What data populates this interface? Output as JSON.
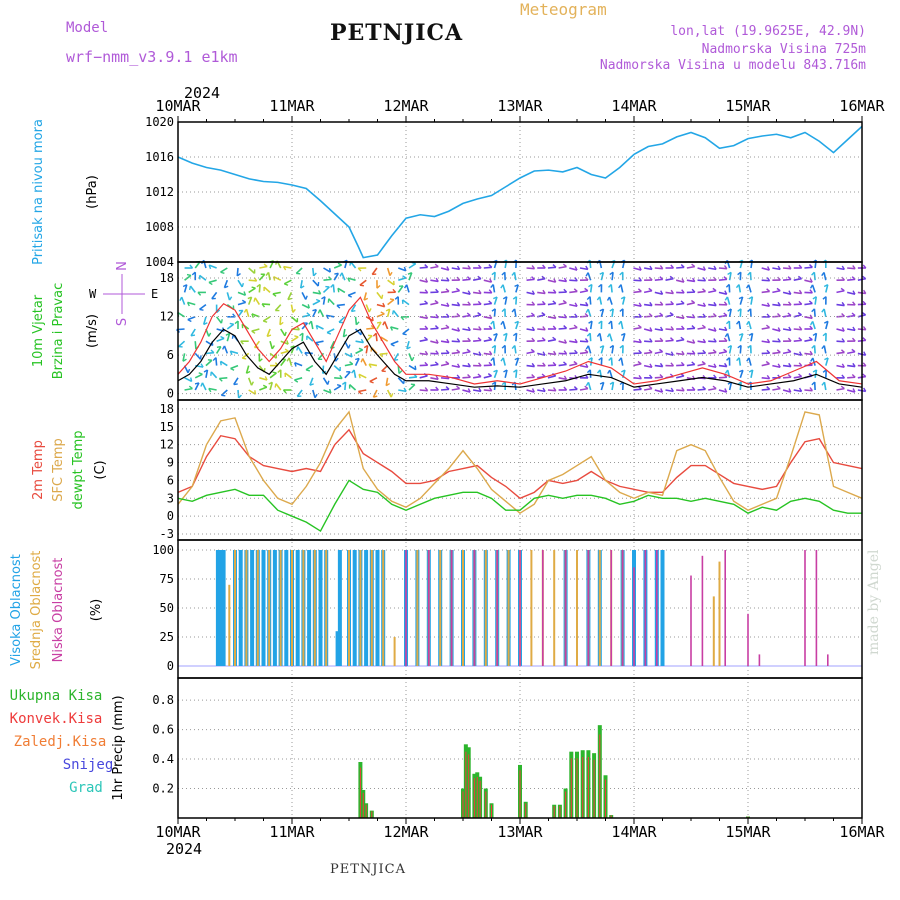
{
  "header": {
    "title": "PETNJICA",
    "subtitle": "Meteogram",
    "model_label": "Model",
    "model_name": "wrf−nmm_v3.9.1  e1km",
    "loc_coords": "lon,lat (19.9625E, 42.9N)",
    "elevation": "Nadmorska Visina 725m",
    "model_elevation": "Nadmorska Visina u modelu 843.716m"
  },
  "footer": {
    "station": "PETNJICA",
    "credit": "made by Angel"
  },
  "time_axis": {
    "year": "2024",
    "labels": [
      "10MAR",
      "11MAR",
      "12MAR",
      "13MAR",
      "14MAR",
      "15MAR",
      "16MAR"
    ]
  },
  "colors": {
    "pressure": "#23a6e6",
    "wind_speed": "#000000",
    "gust": "#ee3333",
    "temp2m": "#e84b3f",
    "sfc_temp": "#dca94d",
    "dewpt": "#27c323",
    "cloud_high": "#22a3e6",
    "cloud_mid": "#dfab45",
    "cloud_low": "#c83ea3",
    "precip_total": "#2db52d",
    "precip_conv": "#ee3c3c",
    "precip_frz": "#f07d35",
    "snow": "#4848dd",
    "grad": "#2cc6b8"
  },
  "chart_data": [
    {
      "type": "line",
      "panel": "pressure",
      "ylabel": "Pritisak na nivou mora",
      "unit": "(hPa)",
      "ylim": [
        1004,
        1020
      ],
      "yticks": [
        1004,
        1008,
        1012,
        1016,
        1020
      ],
      "x_days": [
        0,
        0.125,
        0.25,
        0.375,
        0.5,
        0.625,
        0.75,
        0.875,
        1.0,
        1.125,
        1.25,
        1.375,
        1.5,
        1.58,
        1.625,
        1.75,
        1.875,
        2.0,
        2.125,
        2.25,
        2.375,
        2.5,
        2.625,
        2.75,
        2.875,
        3.0,
        3.125,
        3.25,
        3.375,
        3.5,
        3.625,
        3.75,
        3.875,
        4.0,
        4.125,
        4.25,
        4.375,
        4.5,
        4.625,
        4.75,
        4.875,
        5.0,
        5.125,
        5.25,
        5.375,
        5.5,
        5.625,
        5.75,
        5.875,
        6.0
      ],
      "values": [
        1016,
        1015.3,
        1014.8,
        1014.5,
        1014,
        1013.5,
        1013.2,
        1013.1,
        1012.8,
        1012.4,
        1011,
        1009.5,
        1008,
        1005.8,
        1004.5,
        1004.8,
        1007,
        1009,
        1009.4,
        1009.2,
        1009.8,
        1010.7,
        1011.2,
        1011.6,
        1012.6,
        1013.6,
        1014.4,
        1014.5,
        1014.3,
        1014.8,
        1014,
        1013.6,
        1014.8,
        1016.3,
        1017.2,
        1017.5,
        1018.3,
        1018.8,
        1018.2,
        1017.0,
        1017.3,
        1018.1,
        1018.4,
        1018.6,
        1018.2,
        1018.8,
        1017.8,
        1016.5,
        1018.0,
        1019.5
      ]
    },
    {
      "type": "line",
      "panel": "wind",
      "ylabel": "10m Vjetar",
      "ylabel2": "Brzina i Pravac",
      "unit": "(m/s)",
      "ylim": [
        -1,
        20.5
      ],
      "yticks": [
        0,
        6,
        12,
        18
      ],
      "compass": {
        "n": "N",
        "e": "E",
        "w": "W",
        "s": "S"
      },
      "x_days": [
        0,
        0.1,
        0.2,
        0.3,
        0.4,
        0.5,
        0.6,
        0.7,
        0.8,
        0.9,
        1.0,
        1.1,
        1.2,
        1.3,
        1.4,
        1.5,
        1.6,
        1.7,
        1.8,
        1.9,
        2.0,
        2.2,
        2.4,
        2.6,
        2.8,
        3.0,
        3.2,
        3.4,
        3.6,
        3.8,
        4.0,
        4.2,
        4.4,
        4.6,
        4.8,
        5.0,
        5.2,
        5.4,
        5.6,
        5.8,
        6.0
      ],
      "series": [
        {
          "values": [
            2,
            3,
            5,
            8,
            10,
            9,
            6,
            4,
            3,
            5,
            7,
            8,
            5,
            3,
            6,
            9,
            10,
            7,
            5,
            3,
            2,
            2,
            1.5,
            1,
            1.2,
            1,
            1.5,
            2,
            3,
            2.5,
            1,
            1.5,
            2,
            2.5,
            2,
            1,
            1.5,
            2,
            3,
            1.5,
            1
          ]
        },
        {
          "values": [
            3,
            5,
            8,
            12,
            14,
            13,
            10,
            7,
            5,
            7,
            10,
            11,
            8,
            5,
            9,
            13,
            15,
            11,
            8,
            5,
            3,
            3,
            2.5,
            1.5,
            2,
            1.5,
            2.5,
            3.5,
            5,
            4,
            1.5,
            2,
            3,
            4,
            3,
            1.5,
            2,
            3.5,
            5,
            2,
            1.5
          ]
        }
      ]
    },
    {
      "type": "line",
      "panel": "temperature",
      "ylabels": [
        "2m Temp",
        "SFC Temp",
        "dewpt Temp"
      ],
      "unit": "(C)",
      "ylim": [
        -4,
        19.5
      ],
      "yticks": [
        -3,
        0,
        3,
        6,
        9,
        12,
        15,
        18
      ],
      "x_days": [
        0,
        0.125,
        0.25,
        0.375,
        0.5,
        0.625,
        0.75,
        0.875,
        1.0,
        1.125,
        1.25,
        1.375,
        1.5,
        1.625,
        1.75,
        1.875,
        2.0,
        2.125,
        2.25,
        2.375,
        2.5,
        2.625,
        2.75,
        2.875,
        3.0,
        3.125,
        3.25,
        3.375,
        3.5,
        3.625,
        3.75,
        3.875,
        4.0,
        4.125,
        4.25,
        4.375,
        4.5,
        4.625,
        4.75,
        4.875,
        5.0,
        5.125,
        5.25,
        5.375,
        5.5,
        5.625,
        5.75,
        5.875,
        6.0
      ],
      "series": [
        {
          "name": "2m Temp",
          "values": [
            4,
            5,
            10,
            13.5,
            13,
            10,
            8.5,
            8,
            7.5,
            8,
            7.5,
            12,
            14.5,
            10.5,
            9,
            7.5,
            5.5,
            5.5,
            6,
            7.5,
            8,
            8.5,
            6.5,
            5,
            3,
            4,
            6,
            5.5,
            6,
            7.5,
            6,
            5,
            4.5,
            4,
            4,
            6.5,
            8.5,
            8.5,
            7,
            5.5,
            5,
            4.5,
            5,
            9,
            12.5,
            13,
            9,
            8.5,
            8
          ]
        },
        {
          "name": "SFC Temp",
          "values": [
            2,
            5,
            12,
            16,
            16.5,
            10,
            6,
            3,
            2,
            5,
            9,
            14.5,
            17.5,
            8,
            4.5,
            2.5,
            1.5,
            3,
            5.5,
            8,
            11,
            8,
            4.5,
            2.5,
            0.5,
            2,
            6,
            7,
            8.5,
            10,
            6,
            4,
            3,
            4,
            3.5,
            11,
            12,
            11,
            6.5,
            2.5,
            1,
            2,
            3,
            10,
            17.5,
            17,
            5,
            4,
            3
          ]
        },
        {
          "name": "dewpt Temp",
          "values": [
            3,
            2.5,
            3.5,
            4,
            4.5,
            3.5,
            3.5,
            1,
            0,
            -1,
            -2.5,
            2,
            6,
            4.5,
            4,
            2,
            1,
            2,
            3,
            3.5,
            4,
            4,
            3,
            1,
            1,
            3,
            3.5,
            3,
            3.5,
            3.5,
            3,
            2,
            2.5,
            3.5,
            3,
            3,
            2.5,
            3,
            2.5,
            2,
            0.5,
            1.5,
            1,
            2.5,
            3,
            2.5,
            1,
            0.5,
            0.5
          ]
        }
      ]
    },
    {
      "type": "bar",
      "panel": "clouds",
      "ylabels": [
        "Visoka Oblacnost",
        "Srednja Oblacnost",
        "Niska Oblacnost"
      ],
      "unit": "(%)",
      "ylim": [
        0,
        100
      ],
      "yticks": [
        0,
        25,
        50,
        75,
        100
      ],
      "series": [
        {
          "name": "Visoka Oblacnost",
          "x_days": [
            0.35,
            0.38,
            0.4,
            0.5,
            0.55,
            0.6,
            0.65,
            0.7,
            0.75,
            0.8,
            0.85,
            0.9,
            0.95,
            1.0,
            1.05,
            1.1,
            1.15,
            1.2,
            1.25,
            1.3,
            1.4,
            1.42,
            1.5,
            1.55,
            1.6,
            1.65,
            1.7,
            1.75,
            1.8,
            2.0,
            2.1,
            2.2,
            2.3,
            2.4,
            2.5,
            2.6,
            2.7,
            2.8,
            2.9,
            3.0,
            3.4,
            3.6,
            3.7,
            3.9,
            4.0,
            4.1,
            4.2,
            4.25
          ],
          "values": [
            100,
            100,
            100,
            100,
            100,
            100,
            100,
            100,
            100,
            100,
            100,
            100,
            100,
            100,
            100,
            100,
            100,
            100,
            100,
            100,
            30,
            100,
            100,
            100,
            100,
            100,
            100,
            100,
            100,
            100,
            100,
            100,
            100,
            100,
            100,
            100,
            100,
            100,
            100,
            100,
            100,
            100,
            100,
            100,
            100,
            100,
            100,
            100
          ]
        },
        {
          "name": "Srednja Oblacnost",
          "x_days": [
            0.45,
            0.5,
            0.6,
            0.7,
            0.8,
            0.9,
            1.0,
            1.1,
            1.2,
            1.3,
            1.5,
            1.6,
            1.7,
            1.8,
            1.9,
            2.1,
            2.2,
            2.3,
            2.4,
            2.5,
            2.6,
            2.7,
            2.8,
            2.9,
            3.0,
            3.1,
            3.2,
            3.3,
            3.4,
            3.5,
            3.6,
            3.7,
            3.8,
            3.9,
            4.7,
            4.75
          ],
          "values": [
            70,
            100,
            100,
            100,
            100,
            100,
            100,
            100,
            100,
            100,
            100,
            100,
            100,
            100,
            25,
            100,
            100,
            100,
            100,
            100,
            100,
            100,
            100,
            100,
            100,
            100,
            100,
            100,
            100,
            100,
            100,
            100,
            100,
            100,
            60,
            90
          ]
        },
        {
          "name": "Niska Oblacnost",
          "x_days": [
            2.0,
            2.2,
            2.4,
            2.6,
            2.8,
            3.0,
            3.2,
            3.4,
            3.6,
            3.8,
            3.9,
            4.0,
            4.1,
            4.2,
            4.5,
            4.6,
            4.8,
            5.0,
            5.1,
            5.5,
            5.6,
            5.7
          ],
          "values": [
            100,
            100,
            100,
            100,
            100,
            100,
            100,
            100,
            100,
            100,
            100,
            85,
            100,
            100,
            78,
            95,
            100,
            45,
            10,
            100,
            100,
            10
          ]
        }
      ]
    },
    {
      "type": "bar",
      "panel": "precipitation",
      "unit": "1hr Precip (mm)",
      "ylim": [
        0,
        0.95
      ],
      "yticks": [
        0.2,
        0.4,
        0.6,
        0.8
      ],
      "legend": [
        "Ukupna Kisa",
        "Konvek.Kisa",
        "Zaledj.Kisa",
        "Snijeg",
        "Grad"
      ],
      "x_days": [
        1.6,
        1.625,
        1.65,
        1.7,
        2.5,
        2.525,
        2.55,
        2.6,
        2.625,
        2.65,
        2.7,
        2.75,
        3.0,
        3.05,
        3.3,
        3.35,
        3.4,
        3.45,
        3.5,
        3.55,
        3.6,
        3.65,
        3.7,
        3.75,
        3.8,
        5.0
      ],
      "values": [
        0.38,
        0.19,
        0.1,
        0.05,
        0.2,
        0.5,
        0.48,
        0.3,
        0.31,
        0.28,
        0.2,
        0.1,
        0.36,
        0.11,
        0.09,
        0.09,
        0.2,
        0.45,
        0.45,
        0.46,
        0.46,
        0.44,
        0.63,
        0.29,
        0.02,
        0.01
      ]
    }
  ]
}
